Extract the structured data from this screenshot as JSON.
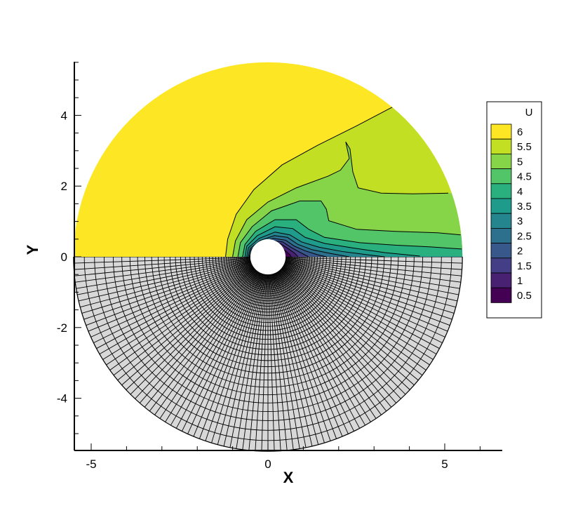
{
  "chart_data": {
    "type": "contour",
    "xlabel": "X",
    "ylabel": "Y",
    "xlim": [
      -5.5,
      6.6
    ],
    "ylim": [
      -5.5,
      5.5
    ],
    "x_ticks": [
      {
        "value": -5,
        "label": "-5"
      },
      {
        "value": 0,
        "label": "0"
      },
      {
        "value": 5,
        "label": "5"
      }
    ],
    "y_ticks": [
      {
        "value": -4,
        "label": "-4"
      },
      {
        "value": -2,
        "label": "-2"
      },
      {
        "value": 0,
        "label": "0"
      },
      {
        "value": 2,
        "label": "2"
      },
      {
        "value": 4,
        "label": "4"
      }
    ],
    "domain": {
      "inner_radius": 0.5,
      "outer_radius": 5.5
    },
    "upper_half": "contour of U",
    "lower_half": "computational mesh",
    "mesh": {
      "fill": "#d8d8d8",
      "radial_lines": 96,
      "rings": 42
    },
    "legend": {
      "title": "U",
      "position": "right",
      "levels": [
        {
          "label": "6",
          "color": "#fde725"
        },
        {
          "label": "5.5",
          "color": "#c2df23"
        },
        {
          "label": "5",
          "color": "#86d549"
        },
        {
          "label": "4.5",
          "color": "#52c569"
        },
        {
          "label": "4",
          "color": "#2ab07f"
        },
        {
          "label": "3.5",
          "color": "#1e9b8a"
        },
        {
          "label": "3",
          "color": "#25858e"
        },
        {
          "label": "2.5",
          "color": "#2d708e"
        },
        {
          "label": "2",
          "color": "#38588c"
        },
        {
          "label": "1.5",
          "color": "#433e85"
        },
        {
          "label": "1",
          "color": "#482173"
        },
        {
          "label": "0.5",
          "color": "#440154"
        }
      ]
    },
    "contour_lines": [
      {
        "level": 5.75,
        "points": [
          [
            -1.2,
            0
          ],
          [
            -1.14,
            0.5
          ],
          [
            -0.9,
            1.2
          ],
          [
            -0.4,
            1.9
          ],
          [
            0.4,
            2.6
          ],
          [
            1.4,
            3.15
          ],
          [
            2.5,
            3.7
          ],
          [
            3.55,
            4.25
          ]
        ]
      },
      {
        "level": 5.25,
        "points": [
          [
            -1.0,
            0
          ],
          [
            -0.92,
            0.45
          ],
          [
            -0.6,
            1.05
          ],
          [
            0,
            1.55
          ],
          [
            0.8,
            1.95
          ],
          [
            1.7,
            2.28
          ],
          [
            2.05,
            2.45
          ],
          [
            2.3,
            2.78
          ],
          [
            2.2,
            3.25
          ],
          [
            2.32,
            3.05
          ],
          [
            2.4,
            2.4
          ],
          [
            2.55,
            1.95
          ],
          [
            3.2,
            1.8
          ],
          [
            4.1,
            1.78
          ],
          [
            5.1,
            1.8
          ]
        ]
      },
      {
        "level": 4.75,
        "points": [
          [
            -0.85,
            0
          ],
          [
            -0.78,
            0.4
          ],
          [
            -0.45,
            0.85
          ],
          [
            0.1,
            1.3
          ],
          [
            0.9,
            1.58
          ],
          [
            1.5,
            1.58
          ],
          [
            1.65,
            1.35
          ],
          [
            1.72,
            1.02
          ],
          [
            2.5,
            0.78
          ],
          [
            3.6,
            0.72
          ],
          [
            4.8,
            0.68
          ],
          [
            5.45,
            0.62
          ]
        ]
      },
      {
        "level": 4.25,
        "points": [
          [
            -0.72,
            0
          ],
          [
            -0.65,
            0.35
          ],
          [
            -0.35,
            0.72
          ],
          [
            0.2,
            1.05
          ],
          [
            0.8,
            1.05
          ],
          [
            1.15,
            0.78
          ],
          [
            1.6,
            0.55
          ],
          [
            2.6,
            0.4
          ],
          [
            3.6,
            0.33
          ],
          [
            4.6,
            0.28
          ],
          [
            5.48,
            0.22
          ]
        ]
      },
      {
        "level": 3.75,
        "points": [
          [
            -0.65,
            0
          ],
          [
            -0.6,
            0.3
          ],
          [
            -0.3,
            0.6
          ],
          [
            0.2,
            0.85
          ],
          [
            0.7,
            0.8
          ],
          [
            1.05,
            0.55
          ],
          [
            1.6,
            0.38
          ],
          [
            2.4,
            0.25
          ],
          [
            3.3,
            0.12
          ],
          [
            4.3,
            0.02
          ]
        ]
      },
      {
        "level": 3.25,
        "points": [
          [
            -0.6,
            0
          ],
          [
            -0.55,
            0.26
          ],
          [
            -0.25,
            0.52
          ],
          [
            0.2,
            0.7
          ],
          [
            0.62,
            0.62
          ],
          [
            0.95,
            0.42
          ],
          [
            1.45,
            0.27
          ],
          [
            2.1,
            0.15
          ],
          [
            2.8,
            0.06
          ],
          [
            3.3,
            0.0
          ]
        ]
      },
      {
        "level": 2.75,
        "points": [
          [
            -0.56,
            0
          ],
          [
            -0.5,
            0.24
          ],
          [
            -0.22,
            0.46
          ],
          [
            0.18,
            0.6
          ],
          [
            0.55,
            0.55
          ],
          [
            0.85,
            0.35
          ],
          [
            1.25,
            0.2
          ],
          [
            1.8,
            0.09
          ],
          [
            2.3,
            0.0
          ]
        ]
      },
      {
        "level": 2.25,
        "points": [
          [
            -0.53,
            0
          ],
          [
            -0.47,
            0.22
          ],
          [
            -0.2,
            0.42
          ],
          [
            0.15,
            0.52
          ],
          [
            0.5,
            0.47
          ],
          [
            0.75,
            0.3
          ],
          [
            1.05,
            0.17
          ],
          [
            1.4,
            0.06
          ],
          [
            1.65,
            0.0
          ]
        ]
      },
      {
        "level": 1.75,
        "points": [
          [
            -0.51,
            0
          ],
          [
            -0.45,
            0.2
          ],
          [
            -0.18,
            0.38
          ],
          [
            0.12,
            0.46
          ],
          [
            0.42,
            0.42
          ],
          [
            0.65,
            0.27
          ],
          [
            0.88,
            0.14
          ],
          [
            1.15,
            0.0
          ]
        ]
      },
      {
        "level": 1.25,
        "points": [
          [
            -0.5,
            0
          ],
          [
            -0.44,
            0.18
          ],
          [
            -0.16,
            0.33
          ],
          [
            0.1,
            0.4
          ],
          [
            0.36,
            0.37
          ],
          [
            0.56,
            0.24
          ],
          [
            0.76,
            0.1
          ],
          [
            0.85,
            0.0
          ]
        ]
      },
      {
        "level": 0.75,
        "points": [
          [
            -0.5,
            0
          ],
          [
            -0.43,
            0.16
          ],
          [
            -0.15,
            0.28
          ],
          [
            0.08,
            0.33
          ],
          [
            0.3,
            0.3
          ],
          [
            0.48,
            0.18
          ],
          [
            0.62,
            0.06
          ],
          [
            0.66,
            0.0
          ]
        ]
      }
    ]
  }
}
